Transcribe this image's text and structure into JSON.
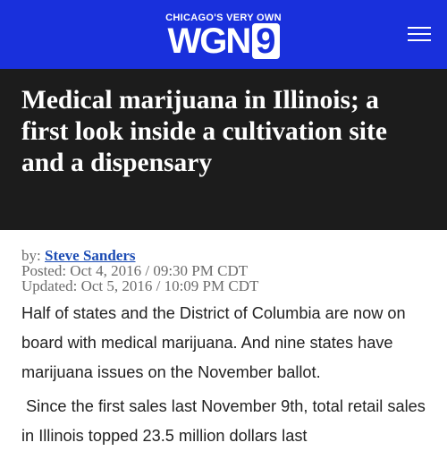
{
  "header": {
    "tagline": "CHICAGO'S VERY OWN",
    "logo_letters": "WGN",
    "logo_number": "9"
  },
  "article": {
    "title": "Medical marijuana in Illinois; a first look inside a cultivation site and a dispensary",
    "byline_prefix": "by:",
    "author": "Steve Sanders",
    "posted": "Posted: Oct 4, 2016 / 09:30 PM CDT",
    "updated": "Updated: Oct 5, 2016 / 10:09 PM CDT",
    "paragraphs": [
      "Half of states and the District of Columbia are now on board with medical marijuana. And nine states have marijuana issues on the November ballot.",
      " Since the first sales last November 9th, total retail sales in Illinois topped 23.5 million dollars last"
    ]
  }
}
